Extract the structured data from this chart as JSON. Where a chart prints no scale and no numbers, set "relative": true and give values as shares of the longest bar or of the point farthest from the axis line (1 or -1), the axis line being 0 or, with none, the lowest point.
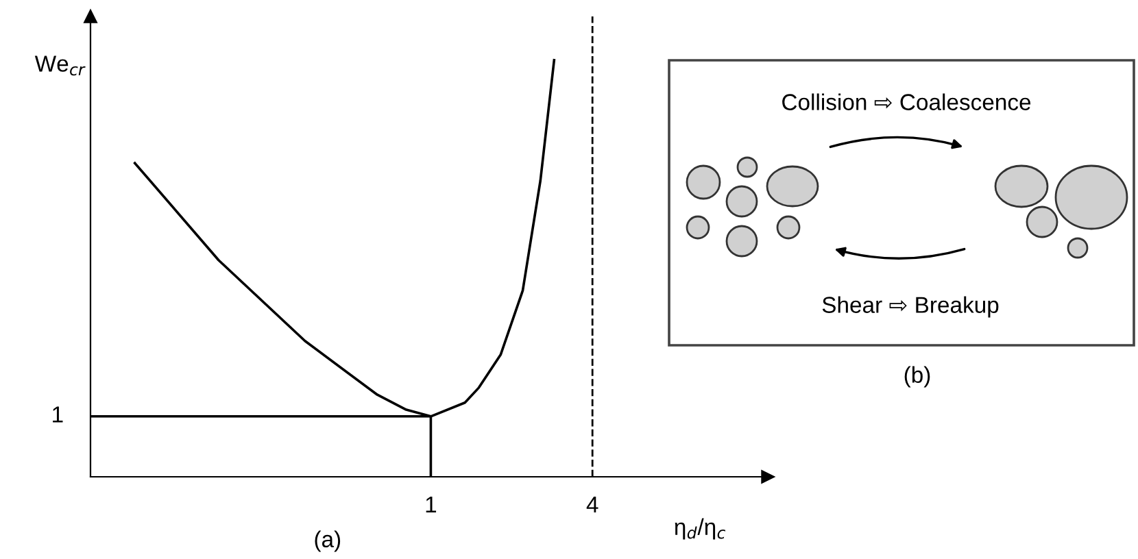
{
  "chart_data": [
    {
      "type": "line",
      "xlabel": "η$_{d}$/η$_{c}$",
      "ylabel": "We$_{cr}$",
      "relative": true,
      "log": "x",
      "xlim": [
        0.054,
        18
      ],
      "xticks": [
        1,
        4
      ],
      "grid": false,
      "legend": false,
      "marker": "none",
      "line_style": "solid",
      "series": [
        {
          "color": "#000000",
          "x": [
            0.079,
            0.162,
            0.34,
            0.632,
            0.81,
            1,
            1.34,
            1.51,
            1.82,
            2.2,
            2.56,
            2.88
          ],
          "values": [
            0.753,
            0.52,
            0.326,
            0.197,
            0.161,
            0.145,
            0.178,
            0.214,
            0.293,
            0.447,
            0.711,
            1.0
          ]
        },
        {
          "color": "#000000",
          "x": [
            0.054,
            1,
            1
          ],
          "values": [
            0.145,
            0.145,
            0
          ]
        }
      ],
      "ref_lines": [
        {
          "axis": "x",
          "value": 4,
          "line_style": "dashed",
          "color": "#000000"
        }
      ],
      "annotations": [
        {
          "text": "1",
          "x": 0.054,
          "y": 0.145
        },
        "(a)"
      ]
    },
    {
      "type": "other",
      "annotations": [
        "Collision ⇨ Coalescence",
        "Shear ⇨ Breakup",
        "(b)"
      ]
    }
  ]
}
